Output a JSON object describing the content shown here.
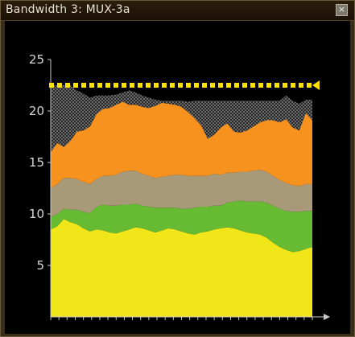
{
  "window": {
    "title": "Bandwidth 3: MUX-3a",
    "close_icon": "close-x-icon"
  },
  "chart_data": {
    "type": "area",
    "stacked": true,
    "xlim": [
      0,
      40
    ],
    "ylim": [
      0,
      25
    ],
    "ytick_labels": [
      "5",
      "10",
      "15",
      "20",
      "25"
    ],
    "ytick_values": [
      5,
      10,
      15,
      20,
      25
    ],
    "grid": false,
    "legend": "none",
    "limit_line": {
      "value": 22.5,
      "color": "#ffe200"
    },
    "x": [
      0,
      1,
      2,
      3,
      4,
      5,
      6,
      7,
      8,
      9,
      10,
      11,
      12,
      13,
      14,
      15,
      16,
      17,
      18,
      19,
      20,
      21,
      22,
      23,
      24,
      25,
      26,
      27,
      28,
      29,
      30,
      31,
      32,
      33,
      34,
      35,
      36,
      37,
      38,
      39,
      40
    ],
    "series": [
      {
        "color": "#f0e61a",
        "values": [
          8.5,
          8.8,
          9.5,
          9.2,
          9.0,
          8.6,
          8.3,
          8.5,
          8.4,
          8.2,
          8.1,
          8.3,
          8.5,
          8.7,
          8.6,
          8.4,
          8.2,
          8.4,
          8.6,
          8.5,
          8.3,
          8.1,
          8.0,
          8.2,
          8.3,
          8.5,
          8.6,
          8.7,
          8.6,
          8.4,
          8.2,
          8.1,
          8.0,
          7.7,
          7.2,
          6.8,
          6.5,
          6.3,
          6.4,
          6.6,
          6.8
        ]
      },
      {
        "color": "#66bb33",
        "values": [
          1.2,
          1.2,
          1.0,
          1.2,
          1.4,
          1.6,
          1.8,
          2.2,
          2.5,
          2.6,
          2.7,
          2.6,
          2.4,
          2.3,
          2.2,
          2.3,
          2.4,
          2.2,
          2.0,
          2.1,
          2.2,
          2.4,
          2.6,
          2.5,
          2.4,
          2.3,
          2.2,
          2.4,
          2.6,
          2.9,
          3.0,
          3.1,
          3.2,
          3.4,
          3.6,
          3.7,
          3.8,
          3.9,
          3.8,
          3.7,
          3.5
        ]
      },
      {
        "color": "#a89a78",
        "values": [
          2.8,
          2.9,
          3.0,
          3.1,
          3.0,
          2.9,
          2.8,
          2.7,
          2.8,
          2.9,
          3.0,
          3.2,
          3.3,
          3.2,
          3.1,
          3.0,
          2.9,
          3.0,
          3.1,
          3.2,
          3.3,
          3.2,
          3.1,
          3.0,
          3.0,
          3.1,
          3.0,
          2.9,
          2.8,
          2.8,
          2.9,
          3.0,
          3.1,
          3.0,
          2.9,
          2.8,
          2.7,
          2.6,
          2.5,
          2.6,
          2.6
        ]
      },
      {
        "color": "#f7921e",
        "values": [
          3.5,
          4.0,
          3.0,
          3.6,
          4.6,
          5.0,
          5.6,
          6.3,
          6.5,
          6.6,
          6.8,
          6.8,
          6.4,
          6.4,
          6.5,
          6.6,
          7.0,
          7.2,
          7.0,
          6.8,
          6.6,
          6.2,
          5.6,
          4.9,
          3.6,
          3.8,
          4.6,
          4.8,
          4.0,
          3.8,
          4.0,
          4.3,
          4.6,
          5.0,
          5.4,
          5.6,
          6.2,
          5.6,
          5.4,
          6.9,
          6.2
        ]
      },
      {
        "color": "#777777",
        "texture": "dotted",
        "values": [
          6.5,
          5.6,
          6.0,
          5.4,
          4.0,
          3.6,
          2.8,
          1.8,
          1.3,
          1.2,
          1.0,
          0.9,
          1.4,
          1.2,
          1.1,
          1.0,
          0.6,
          0.2,
          0.3,
          0.4,
          0.6,
          1.0,
          1.7,
          2.4,
          3.7,
          3.3,
          2.6,
          2.2,
          3.0,
          3.1,
          2.9,
          2.5,
          2.1,
          1.9,
          1.9,
          2.1,
          2.3,
          2.6,
          2.6,
          1.3,
          2.0
        ]
      }
    ]
  }
}
